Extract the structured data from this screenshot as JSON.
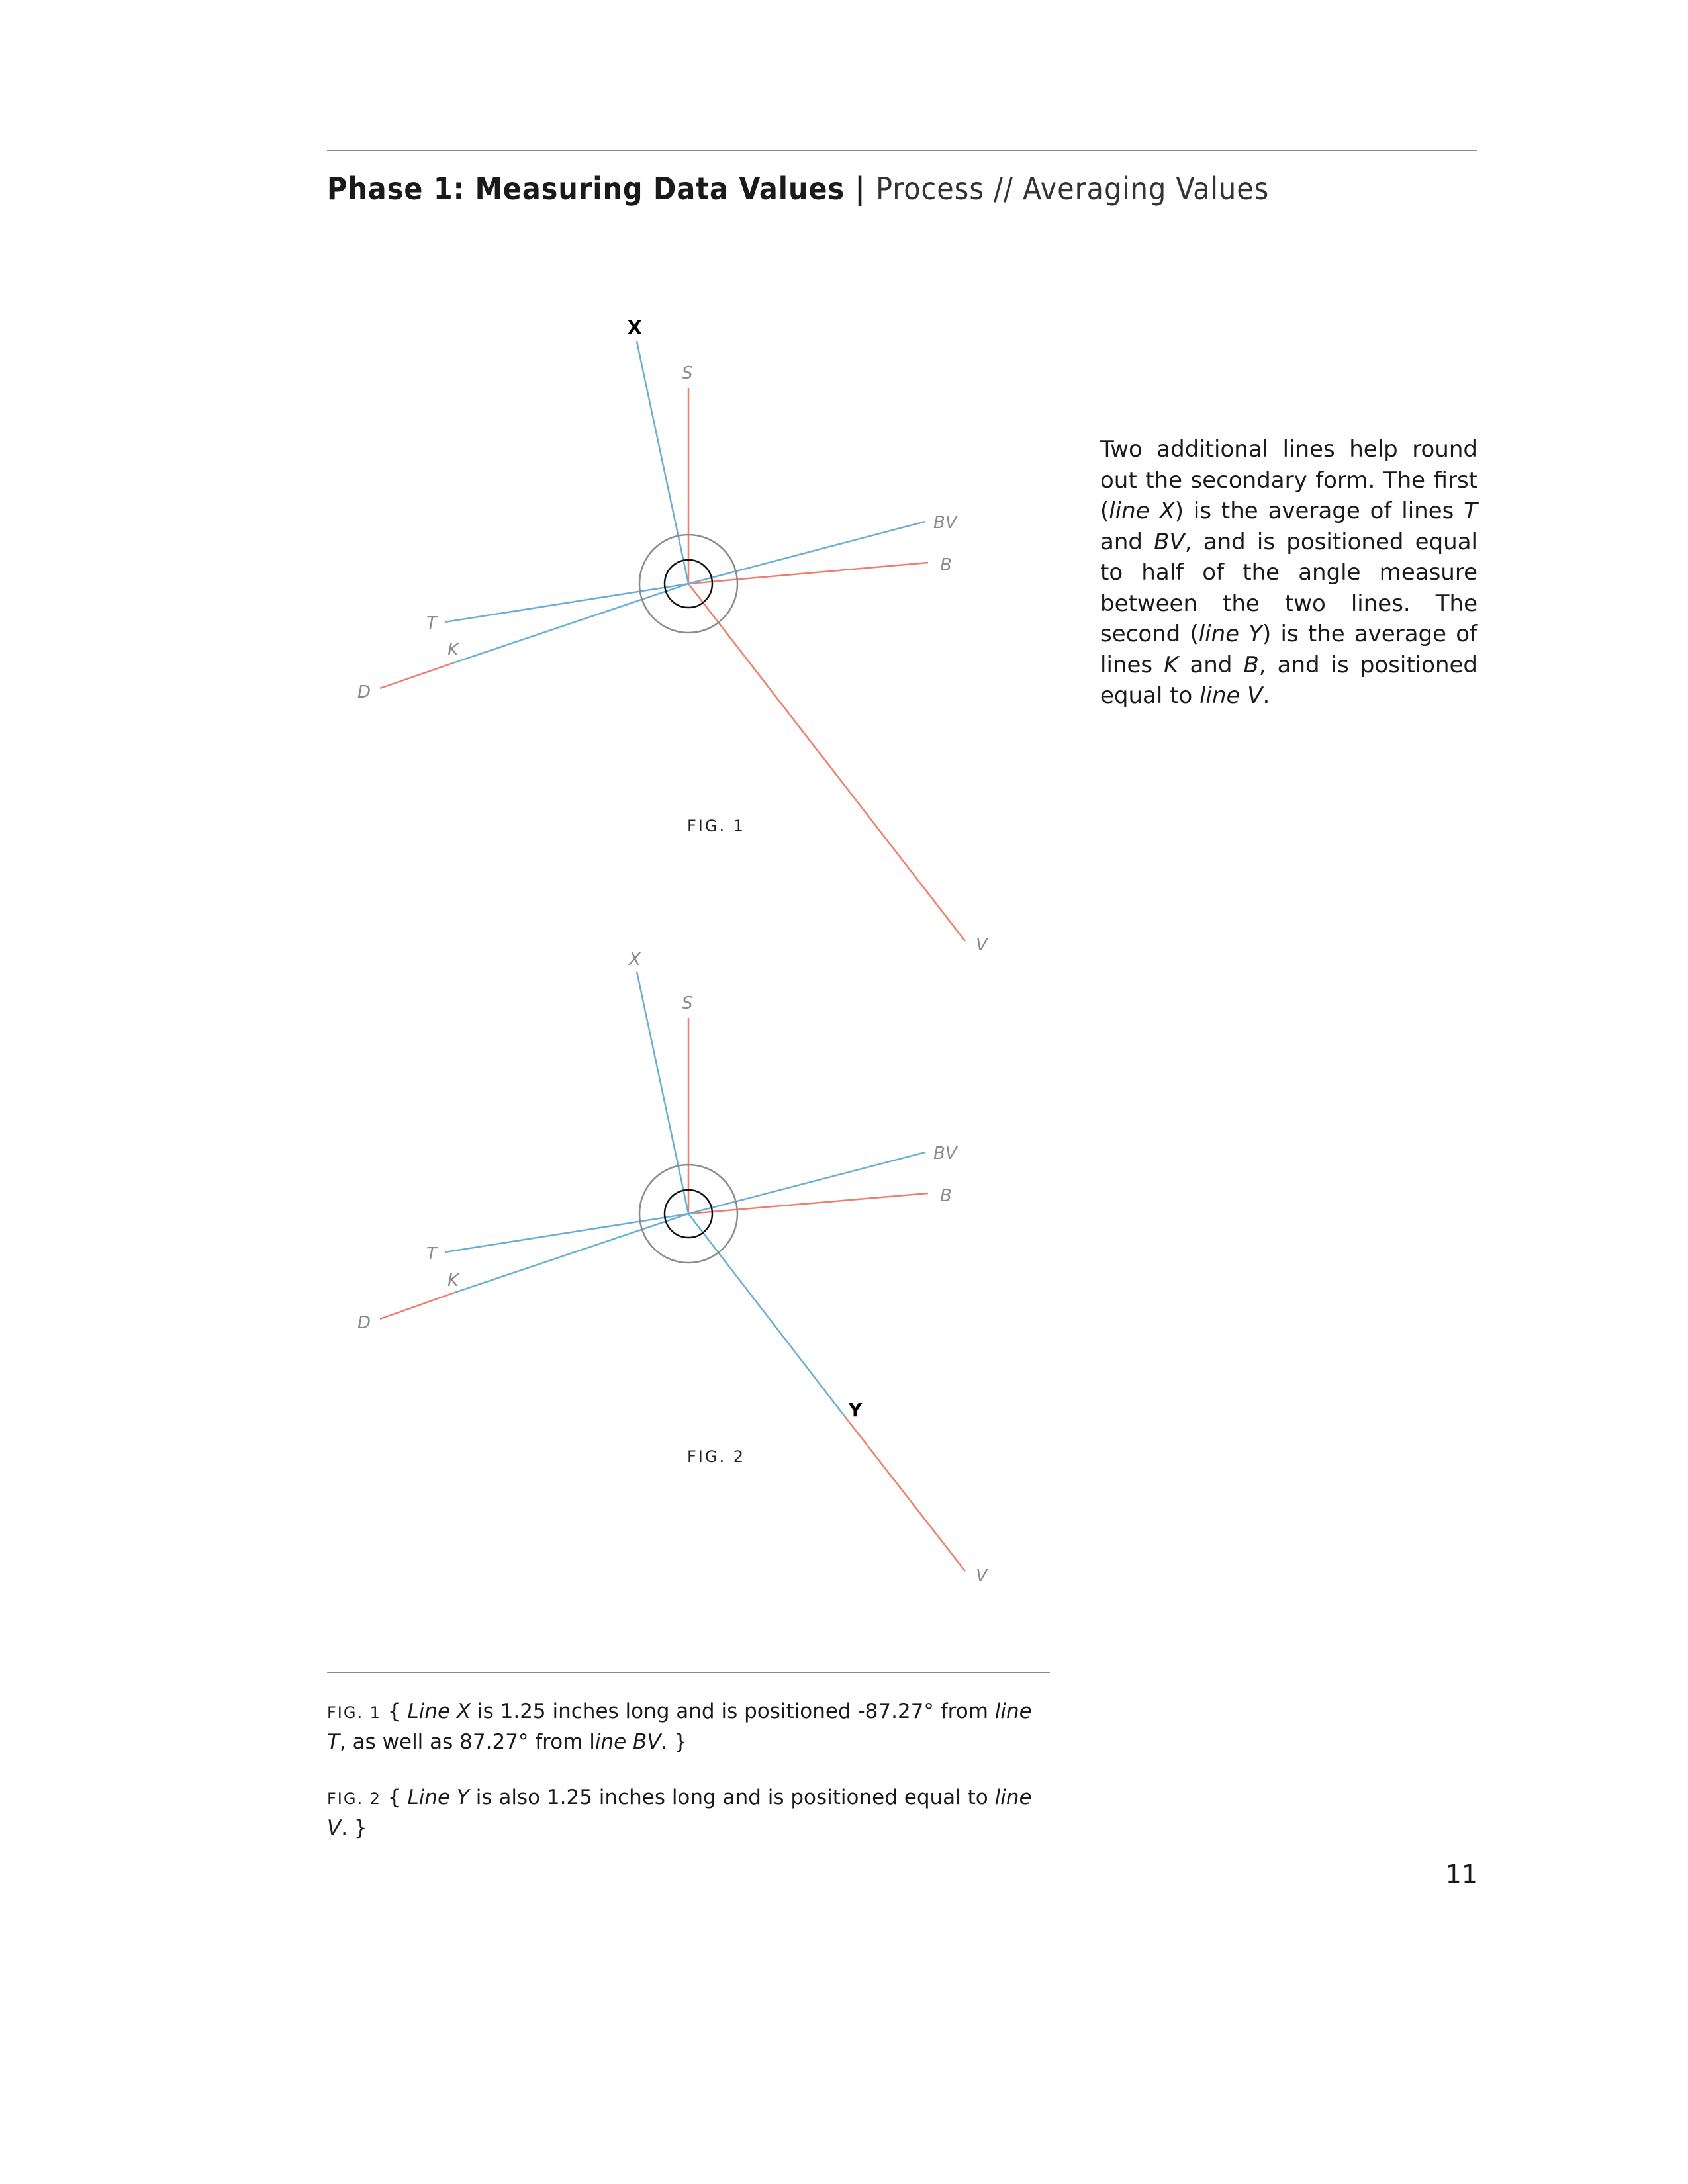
{
  "header": {
    "phase": "Phase 1: Measuring Data Values",
    "separator": "|",
    "section": "Process // Averaging Values"
  },
  "figures": [
    {
      "caption": "FIG. 1",
      "labels": {
        "X": "X",
        "S": "S",
        "BV": "BV",
        "B": "B",
        "T": "T",
        "K": "K",
        "D": "D",
        "V": "V"
      },
      "line_colors": {
        "blue": "#6aaed6",
        "red": "#f07c6c"
      }
    },
    {
      "caption": "FIG. 2",
      "labels": {
        "X": "X",
        "S": "S",
        "BV": "BV",
        "B": "B",
        "T": "T",
        "K": "K",
        "D": "D",
        "Y": "Y",
        "V": "V"
      },
      "line_colors": {
        "blue": "#6aaed6",
        "red": "#f07c6c"
      }
    }
  ],
  "body_text": {
    "s1": "Two additional lines help round out the secondary form. The first (",
    "s2": "line X",
    "s3": ") is the average of lines ",
    "s4": "T",
    "s5": " and ",
    "s6": "BV",
    "s7": ", and is positioned equal to half of the angle measure between the two lines. The second (",
    "s8": "line Y",
    "s9": ") is the average of lines ",
    "s10": "K",
    "s11": " and ",
    "s12": "B",
    "s13": ", and is positioned equal to ",
    "s14": "line V",
    "s15": "."
  },
  "captions": {
    "fig1": {
      "label": "FIG. 1",
      "a": " { ",
      "b": "Line X",
      "c": " is 1.25 inches long and is positioned -87.27° from ",
      "d": "line T",
      "e": ", as well as 87.27° from l",
      "f": "ine BV",
      "g": ". }"
    },
    "fig2": {
      "label": "FIG. 2",
      "a": " { ",
      "b": "Line Y",
      "c": " is also 1.25 inches long and is positioned equal to ",
      "d": "line V",
      "e": ". }"
    }
  },
  "page_number": "11"
}
